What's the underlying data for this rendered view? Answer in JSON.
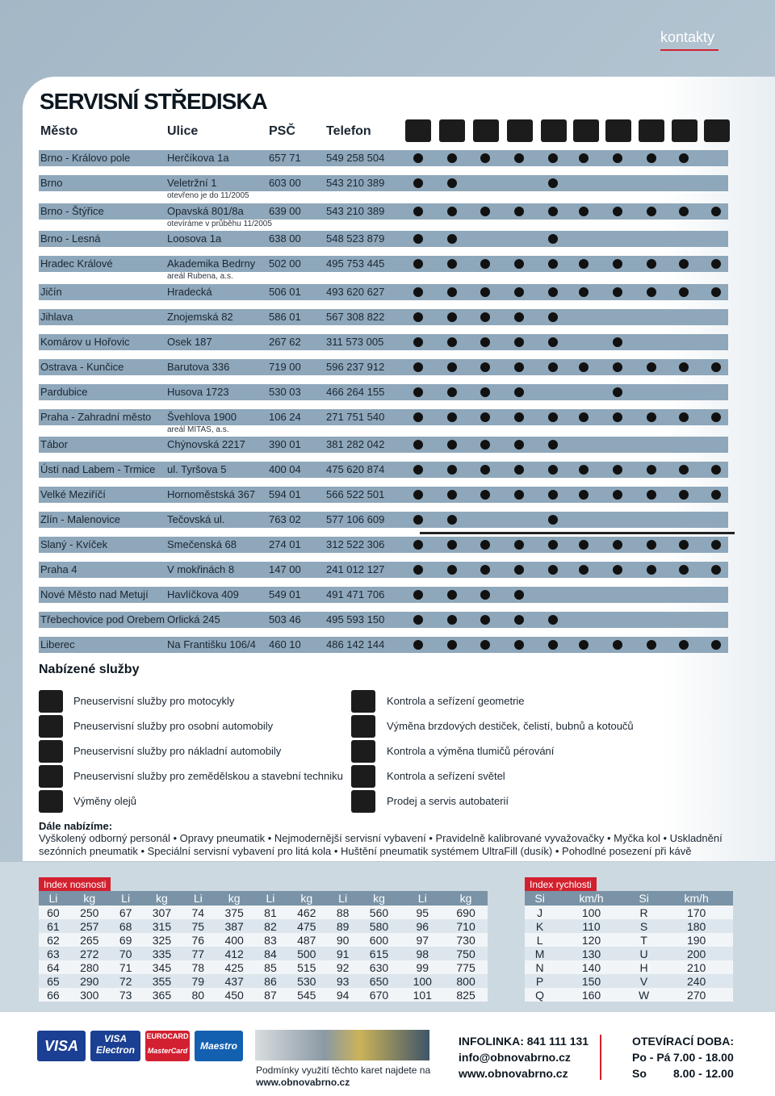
{
  "header": {
    "section": "kontakty",
    "title": "SERVISNÍ STŘEDISKA"
  },
  "columns": [
    "Město",
    "Ulice",
    "PSČ",
    "Telefon"
  ],
  "centers": [
    {
      "city": "Brno - Královo pole",
      "street": "Herčíkova 1a",
      "psc": "657 71",
      "phone": "549 258 504",
      "services": [
        true,
        true,
        true,
        true,
        true,
        true,
        true,
        true,
        true,
        false
      ]
    },
    {
      "city": "Brno",
      "street": "Veletržní 1",
      "note": "otevřeno je do 11/2005",
      "psc": "603 00",
      "phone": "543 210 389",
      "services": [
        true,
        true,
        false,
        false,
        true,
        false,
        false,
        false,
        false,
        false
      ]
    },
    {
      "city": "Brno - Štýřice",
      "street": "Opavská 801/8a",
      "note": "otevíráme v průběhu 11/2005",
      "psc": "639 00",
      "phone": "543 210 389",
      "services": [
        true,
        true,
        true,
        true,
        true,
        true,
        true,
        true,
        true,
        true
      ]
    },
    {
      "city": "Brno - Lesná",
      "street": "Loosova 1a",
      "psc": "638 00",
      "phone": "548 523 879",
      "services": [
        true,
        true,
        false,
        false,
        true,
        false,
        false,
        false,
        false,
        false
      ]
    },
    {
      "city": "Hradec Králové",
      "street": "Akademika Bedrny",
      "note": "areál Rubena, a.s.",
      "psc": "502 00",
      "phone": "495 753 445",
      "services": [
        true,
        true,
        true,
        true,
        true,
        true,
        true,
        true,
        true,
        true
      ]
    },
    {
      "city": "Jičín",
      "street": "Hradecká",
      "psc": "506 01",
      "phone": "493 620 627",
      "services": [
        true,
        true,
        true,
        true,
        true,
        true,
        true,
        true,
        true,
        true
      ]
    },
    {
      "city": "Jihlava",
      "street": "Znojemská 82",
      "psc": "586 01",
      "phone": "567 308 822",
      "services": [
        true,
        true,
        true,
        true,
        true,
        false,
        false,
        false,
        false,
        false
      ]
    },
    {
      "city": "Komárov u Hořovic",
      "street": "Osek 187",
      "psc": "267 62",
      "phone": "311 573 005",
      "services": [
        true,
        true,
        true,
        true,
        true,
        false,
        true,
        false,
        false,
        false
      ]
    },
    {
      "city": "Ostrava - Kunčice",
      "street": "Barutova 336",
      "psc": "719 00",
      "phone": "596 237 912",
      "services": [
        true,
        true,
        true,
        true,
        true,
        true,
        true,
        true,
        true,
        true
      ]
    },
    {
      "city": "Pardubice",
      "street": "Husova 1723",
      "psc": "530 03",
      "phone": "466 264 155",
      "services": [
        true,
        true,
        true,
        true,
        false,
        false,
        true,
        false,
        false,
        false
      ]
    },
    {
      "city": "Praha - Zahradní město",
      "street": "Švehlova 1900",
      "note": "areál MITAS, a.s.",
      "psc": "106 24",
      "phone": "271 751 540",
      "services": [
        true,
        true,
        true,
        true,
        true,
        true,
        true,
        true,
        true,
        true
      ]
    },
    {
      "city": "Tábor",
      "street": "Chýnovská 2217",
      "psc": "390 01",
      "phone": "381 282 042",
      "services": [
        true,
        true,
        true,
        true,
        true,
        false,
        false,
        false,
        false,
        false
      ]
    },
    {
      "city": "Ústí nad Labem - Trmice",
      "street": "ul. Tyršova 5",
      "psc": "400 04",
      "phone": "475 620 874",
      "services": [
        true,
        true,
        true,
        true,
        true,
        true,
        true,
        true,
        true,
        true
      ]
    },
    {
      "city": "Velké Meziříčí",
      "street": "Hornoměstská 367",
      "psc": "594 01",
      "phone": "566 522 501",
      "services": [
        true,
        true,
        true,
        true,
        true,
        true,
        true,
        true,
        true,
        true
      ]
    },
    {
      "city": "Zlín - Malenovice",
      "street": "Tečovská ul.",
      "psc": "763 02",
      "phone": "577 106 609",
      "services": [
        true,
        true,
        false,
        false,
        true,
        false,
        false,
        false,
        false,
        false
      ]
    },
    {
      "city": "Slaný - Kvíček",
      "street": "Smečenská 68",
      "psc": "274 01",
      "phone": "312 522 306",
      "services": [
        true,
        true,
        true,
        true,
        true,
        true,
        true,
        true,
        true,
        true
      ]
    },
    {
      "city": "Praha 4",
      "street": "V mokřinách 8",
      "psc": "147 00",
      "phone": "241 012 127",
      "services": [
        true,
        true,
        true,
        true,
        true,
        true,
        true,
        true,
        true,
        true
      ]
    },
    {
      "city": "Nové Město nad Metují",
      "street": "Havlíčkova 409",
      "psc": "549 01",
      "phone": "491 471 706",
      "services": [
        true,
        true,
        true,
        true,
        false,
        false,
        false,
        false,
        false,
        false
      ]
    },
    {
      "city": "Třebechovice pod Orebem",
      "street": "Orlická 245",
      "psc": "503 46",
      "phone": "495 593 150",
      "services": [
        true,
        true,
        true,
        true,
        true,
        false,
        false,
        false,
        false,
        false
      ]
    },
    {
      "city": "Liberec",
      "street": "Na Františku 106/4",
      "psc": "460 10",
      "phone": "486 142 144",
      "services": [
        true,
        true,
        true,
        true,
        true,
        true,
        true,
        true,
        true,
        true
      ]
    }
  ],
  "offered": {
    "title": "Nabízené služby",
    "left": [
      "Pneuservisní služby pro motocykly",
      "Pneuservisní služby pro osobní automobily",
      "Pneuservisní služby pro nákladní automobily",
      "Pneuservisní služby pro zemědělskou a stavební techniku",
      "Výměny olejů"
    ],
    "right": [
      "Kontrola a seřízení geometrie",
      "Výměna brzdových destiček, čelistí, bubnů a kotoučů",
      "Kontrola a výměna tlumičů pérování",
      "Kontrola a seřízení světel",
      "Prodej a servis autobaterií"
    ]
  },
  "more": {
    "title": "Dále nabízíme:",
    "text": "Vyškolený odborný personál • Opravy pneumatik • Nejmodernější servisní vybavení • Pravidelně kalibrované vyvažovačky • Myčka kol • Uskladnění sezónních pneumatik • Speciální servisní vybavení pro litá kola • Huštění pneumatik systémem UltraFill (dusík) • Pohodlné posezení při kávě"
  },
  "load_index": {
    "title": "Index nosnosti",
    "header": [
      "Li",
      "kg",
      "Li",
      "kg",
      "Li",
      "kg",
      "Li",
      "kg",
      "Li",
      "kg",
      "Li",
      "kg"
    ],
    "rows": [
      [
        60,
        250,
        67,
        307,
        74,
        375,
        81,
        462,
        88,
        560,
        95,
        690
      ],
      [
        61,
        257,
        68,
        315,
        75,
        387,
        82,
        475,
        89,
        580,
        96,
        710
      ],
      [
        62,
        265,
        69,
        325,
        76,
        400,
        83,
        487,
        90,
        600,
        97,
        730
      ],
      [
        63,
        272,
        70,
        335,
        77,
        412,
        84,
        500,
        91,
        615,
        98,
        750
      ],
      [
        64,
        280,
        71,
        345,
        78,
        425,
        85,
        515,
        92,
        630,
        99,
        775
      ],
      [
        65,
        290,
        72,
        355,
        79,
        437,
        86,
        530,
        93,
        650,
        100,
        800
      ],
      [
        66,
        300,
        73,
        365,
        80,
        450,
        87,
        545,
        94,
        670,
        101,
        825
      ]
    ]
  },
  "speed_index": {
    "title": "Index rychlosti",
    "header": [
      "Si",
      "km/h",
      "Si",
      "km/h"
    ],
    "rows": [
      [
        "J",
        100,
        "R",
        170
      ],
      [
        "K",
        110,
        "S",
        180
      ],
      [
        "L",
        120,
        "T",
        190
      ],
      [
        "M",
        130,
        "U",
        200
      ],
      [
        "N",
        140,
        "H",
        210
      ],
      [
        "P",
        150,
        "V",
        240
      ],
      [
        "Q",
        160,
        "W",
        270
      ]
    ]
  },
  "footer": {
    "cards": [
      "VISA",
      "VISA",
      "Electron",
      "EUROCARD",
      "MasterCard",
      "Maestro"
    ],
    "card_note": "Podmínky využití těchto karet najdete na",
    "card_url": "www.obnovabrno.cz",
    "infoline": "INFOLINKA: 841 111 131",
    "email": "info@obnovabrno.cz",
    "web": "www.obnovabrno.cz",
    "hours_title": "OTEVÍRACÍ DOBA:",
    "hours": [
      [
        "Po - Pá",
        "7.00 - 18.00"
      ],
      [
        "So",
        "8.00 - 12.00"
      ]
    ]
  }
}
